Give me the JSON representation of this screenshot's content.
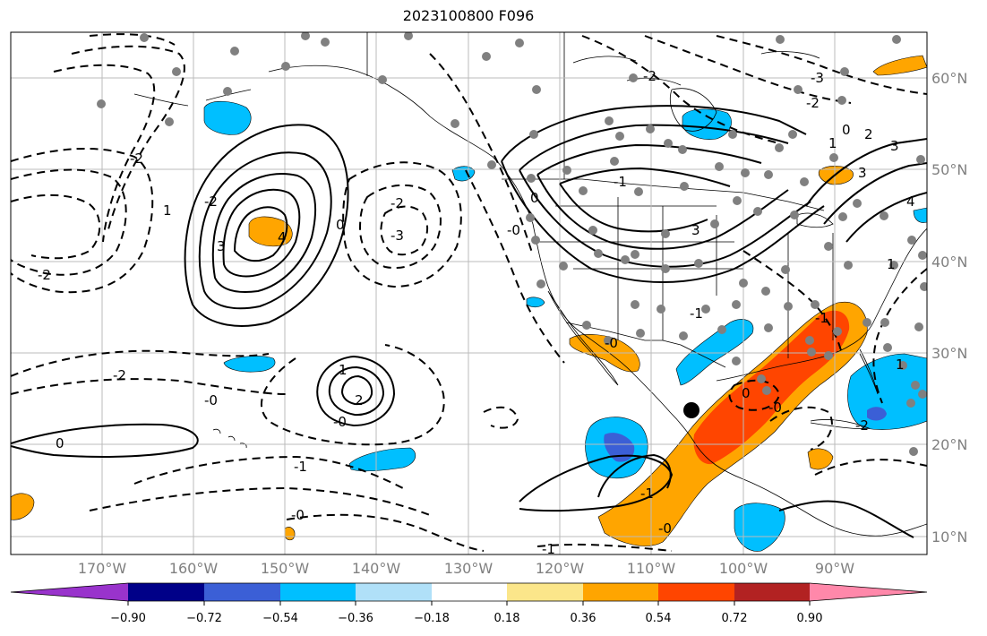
{
  "title": "2023100800 F096",
  "longitude_labels": [
    "170°W",
    "160°W",
    "150°W",
    "140°W",
    "130°W",
    "120°W",
    "110°W",
    "100°W",
    "90°W"
  ],
  "latitude_labels": [
    "60°N",
    "50°N",
    "40°N",
    "30°N",
    "20°N",
    "10°N"
  ],
  "colorbar": {
    "tick_labels": [
      "−0.90",
      "−0.72",
      "−0.54",
      "−0.36",
      "−0.18",
      "0.18",
      "0.36",
      "0.54",
      "0.72",
      "0.90"
    ],
    "colors": [
      "#9933cc",
      "#000088",
      "#3b5fd6",
      "#00bfff",
      "#b0e0f8",
      "#ffffff",
      "#fbe68a",
      "#ffa500",
      "#ff4500",
      "#b22222",
      "#ff88aa"
    ]
  },
  "field_colors": {
    "negative_light": "#00bfff",
    "negative_dark": "#3b5fd6",
    "positive_light": "#ffa500",
    "positive_strong": "#ff4500"
  },
  "contour_labels": [
    "-2",
    "1",
    "-2",
    "-2",
    "3",
    "4",
    "-3",
    "-2",
    "0",
    "-2",
    "-0",
    "-1",
    "-0",
    "2",
    "1",
    "-0",
    "0",
    "-0",
    "-1",
    "0",
    "-2",
    "3",
    "3",
    "-2",
    "-3",
    "-1",
    "-0",
    "-1",
    "-0",
    "1",
    "0",
    "2",
    "3",
    "4",
    "1",
    "-1",
    "0",
    "-0",
    "1",
    "-1",
    "-2"
  ],
  "marker": "storm-center"
}
